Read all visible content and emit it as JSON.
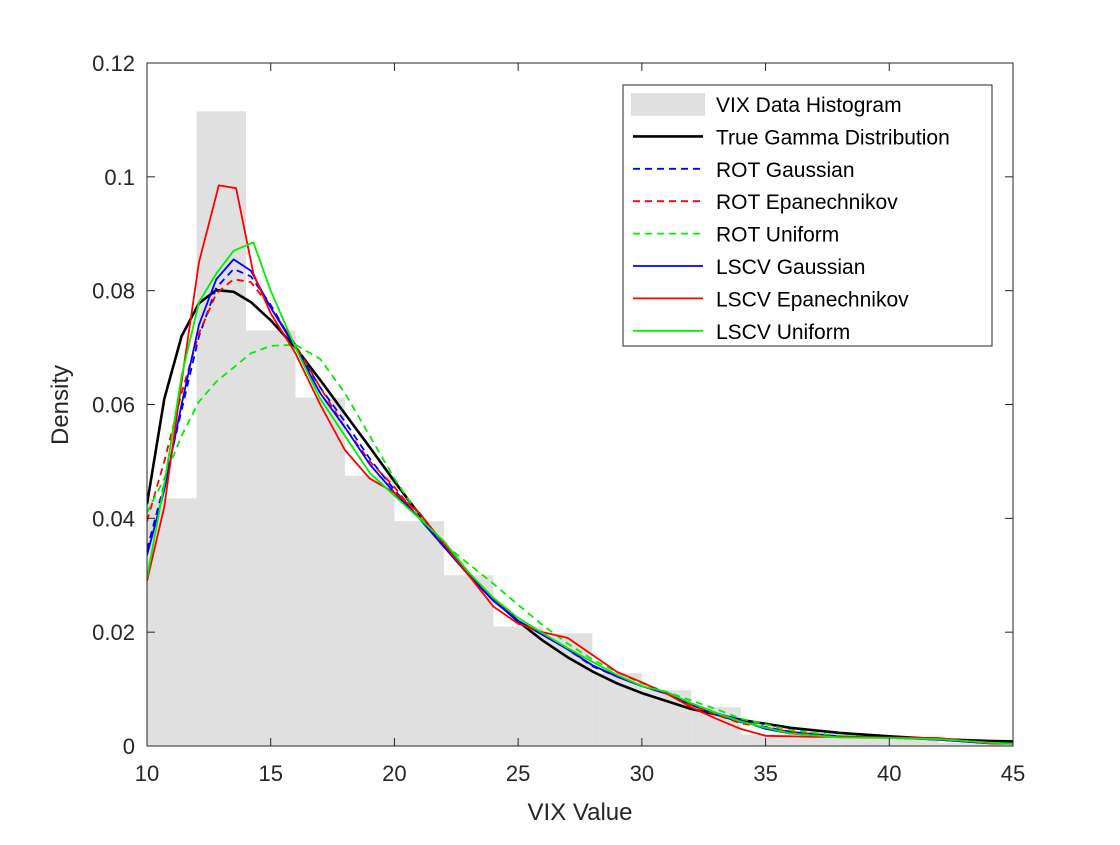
{
  "chart_data": {
    "type": "line",
    "xlabel": "VIX Value",
    "ylabel": "Density",
    "xlim": [
      10,
      45
    ],
    "ylim": [
      0,
      0.12
    ],
    "xticks": [
      10,
      15,
      20,
      25,
      30,
      35,
      40,
      45
    ],
    "xtick_labels": [
      "10",
      "15",
      "20",
      "25",
      "30",
      "35",
      "40",
      "45"
    ],
    "yticks": [
      0,
      0.02,
      0.04,
      0.06,
      0.08,
      0.1,
      0.12
    ],
    "ytick_labels": [
      "0",
      "0.02",
      "0.04",
      "0.06",
      "0.08",
      "0.1",
      "0.12"
    ],
    "grid": false,
    "legend_position": "top-right",
    "histogram": {
      "name": "VIX Data Histogram",
      "color": "#e0e0e0",
      "bins": [
        {
          "x0": 10.0,
          "x1": 12.0,
          "y": 0.0435
        },
        {
          "x0": 12.0,
          "x1": 14.0,
          "y": 0.1115
        },
        {
          "x0": 14.0,
          "x1": 16.0,
          "y": 0.073
        },
        {
          "x0": 16.0,
          "x1": 18.0,
          "y": 0.0612
        },
        {
          "x0": 18.0,
          "x1": 20.0,
          "y": 0.0475
        },
        {
          "x0": 20.0,
          "x1": 22.0,
          "y": 0.0395
        },
        {
          "x0": 22.0,
          "x1": 24.0,
          "y": 0.03
        },
        {
          "x0": 24.0,
          "x1": 26.0,
          "y": 0.021
        },
        {
          "x0": 26.0,
          "x1": 28.0,
          "y": 0.0198
        },
        {
          "x0": 28.0,
          "x1": 30.0,
          "y": 0.0128
        },
        {
          "x0": 30.0,
          "x1": 32.0,
          "y": 0.0098
        },
        {
          "x0": 32.0,
          "x1": 34.0,
          "y": 0.0068
        },
        {
          "x0": 34.0,
          "x1": 36.0,
          "y": 0.002
        },
        {
          "x0": 36.0,
          "x1": 38.0,
          "y": 0.0015
        },
        {
          "x0": 38.0,
          "x1": 40.0,
          "y": 0.0015
        },
        {
          "x0": 40.0,
          "x1": 42.0,
          "y": 0.0012
        },
        {
          "x0": 42.0,
          "x1": 44.0,
          "y": 0.0006
        },
        {
          "x0": 44.0,
          "x1": 45.0,
          "y": 0.0004
        }
      ]
    },
    "series": [
      {
        "name": "True Gamma Distribution",
        "color": "#000000",
        "style": "solid",
        "width": 2.6,
        "x": [
          10,
          10.7,
          11.4,
          12.1,
          12.8,
          13.5,
          14.2,
          15,
          16,
          17,
          18,
          19,
          20,
          21,
          22,
          23,
          24,
          25,
          26,
          27,
          28,
          29,
          30,
          32,
          34,
          36,
          38,
          40,
          42,
          44,
          45
        ],
        "y": [
          0.0425,
          0.061,
          0.072,
          0.0778,
          0.0801,
          0.0798,
          0.078,
          0.0748,
          0.07,
          0.0643,
          0.0584,
          0.0525,
          0.0465,
          0.0407,
          0.0353,
          0.0303,
          0.0258,
          0.0219,
          0.0185,
          0.0156,
          0.0131,
          0.011,
          0.0093,
          0.0065,
          0.0046,
          0.0032,
          0.0023,
          0.0017,
          0.0012,
          0.0009,
          0.0008
        ]
      },
      {
        "name": "ROT Gaussian",
        "color": "#0000ff",
        "style": "dashed",
        "width": 1.8,
        "x": [
          10,
          10.7,
          11.4,
          12.1,
          12.8,
          13.5,
          14.2,
          15,
          16,
          17,
          18,
          19,
          20,
          21,
          22,
          23,
          24,
          25,
          26,
          27,
          28,
          29,
          30,
          31,
          32,
          33,
          34,
          36,
          38,
          40,
          42,
          44,
          45
        ],
        "y": [
          0.0345,
          0.046,
          0.059,
          0.072,
          0.0805,
          0.0838,
          0.0825,
          0.0775,
          0.07,
          0.063,
          0.057,
          0.0505,
          0.045,
          0.04,
          0.0355,
          0.03,
          0.026,
          0.022,
          0.0195,
          0.017,
          0.014,
          0.0122,
          0.0105,
          0.0092,
          0.0072,
          0.0055,
          0.0042,
          0.0025,
          0.0017,
          0.0015,
          0.0011,
          0.0005,
          0.0004
        ]
      },
      {
        "name": "ROT Epanechnikov",
        "color": "#ff0000",
        "style": "dashed",
        "width": 1.8,
        "x": [
          10,
          10.7,
          11.4,
          12.1,
          12.8,
          13.5,
          14.2,
          15,
          16,
          17,
          18,
          19,
          20,
          21,
          22,
          23,
          24,
          25,
          26,
          27,
          28,
          29,
          30,
          31,
          32,
          33,
          34,
          36,
          38,
          40,
          42,
          44,
          45
        ],
        "y": [
          0.0395,
          0.05,
          0.062,
          0.0725,
          0.0795,
          0.082,
          0.0815,
          0.077,
          0.0705,
          0.063,
          0.056,
          0.05,
          0.0455,
          0.04,
          0.035,
          0.03,
          0.0258,
          0.022,
          0.0195,
          0.017,
          0.0142,
          0.0122,
          0.0105,
          0.0092,
          0.0072,
          0.0055,
          0.004,
          0.0025,
          0.0017,
          0.0015,
          0.0011,
          0.0005,
          0.0004
        ]
      },
      {
        "name": "ROT Uniform",
        "color": "#00ee00",
        "style": "dashed",
        "width": 1.8,
        "x": [
          10,
          10.7,
          11.4,
          12.1,
          12.8,
          13.5,
          14.2,
          15,
          16,
          17,
          18,
          19,
          20,
          21,
          22,
          23,
          24,
          25,
          26,
          27,
          28,
          29,
          30,
          31,
          32,
          33,
          34,
          36,
          38,
          40,
          42,
          44,
          45
        ],
        "y": [
          0.041,
          0.047,
          0.0545,
          0.0605,
          0.064,
          0.0665,
          0.069,
          0.0703,
          0.0705,
          0.068,
          0.062,
          0.0545,
          0.047,
          0.0405,
          0.0355,
          0.032,
          0.0285,
          0.0248,
          0.0212,
          0.018,
          0.0152,
          0.013,
          0.011,
          0.0095,
          0.008,
          0.0065,
          0.0048,
          0.0028,
          0.0018,
          0.0014,
          0.0011,
          0.0006,
          0.0004
        ]
      },
      {
        "name": "LSCV Gaussian",
        "color": "#0000ff",
        "style": "solid",
        "width": 1.8,
        "x": [
          10,
          10.7,
          11.4,
          12.1,
          12.8,
          13.5,
          14.2,
          15,
          16,
          17,
          18,
          19,
          20,
          21,
          22,
          23,
          24,
          25,
          26,
          27,
          28,
          29,
          30,
          31,
          32,
          33,
          34,
          35,
          36,
          38,
          40,
          42,
          44,
          45
        ],
        "y": [
          0.0335,
          0.045,
          0.06,
          0.074,
          0.082,
          0.0855,
          0.0835,
          0.077,
          0.07,
          0.062,
          0.056,
          0.0495,
          0.0445,
          0.04,
          0.035,
          0.03,
          0.0255,
          0.022,
          0.0195,
          0.017,
          0.0142,
          0.0122,
          0.0105,
          0.0092,
          0.0075,
          0.0058,
          0.0045,
          0.003,
          0.0022,
          0.0016,
          0.0015,
          0.0011,
          0.0005,
          0.0004
        ]
      },
      {
        "name": "LSCV Epanechnikov",
        "color": "#ff0000",
        "style": "solid",
        "width": 1.8,
        "x": [
          10,
          10.7,
          11.4,
          12.1,
          12.9,
          13.6,
          14.3,
          15,
          16,
          17,
          18,
          19,
          20,
          21,
          22,
          23,
          24,
          25,
          26,
          27,
          28,
          29,
          30,
          31,
          32,
          33,
          34,
          35,
          36,
          37,
          38,
          40,
          42,
          44,
          45
        ],
        "y": [
          0.029,
          0.042,
          0.064,
          0.085,
          0.0985,
          0.098,
          0.083,
          0.076,
          0.069,
          0.06,
          0.052,
          0.047,
          0.0445,
          0.041,
          0.0355,
          0.03,
          0.0245,
          0.0215,
          0.02,
          0.019,
          0.016,
          0.013,
          0.0112,
          0.0092,
          0.0068,
          0.0048,
          0.003,
          0.0018,
          0.0017,
          0.0016,
          0.0016,
          0.0015,
          0.0014,
          0.0005,
          0.0004
        ]
      },
      {
        "name": "LSCV Uniform",
        "color": "#00ee00",
        "style": "solid",
        "width": 1.8,
        "x": [
          10,
          10.7,
          11.4,
          12.1,
          12.8,
          13.5,
          14.3,
          15,
          16,
          17,
          18,
          19,
          20,
          21,
          22,
          23,
          24,
          25,
          26,
          27,
          28,
          29,
          30,
          31,
          32,
          33,
          34,
          35,
          36,
          38,
          40,
          42,
          44,
          45
        ],
        "y": [
          0.0295,
          0.046,
          0.065,
          0.078,
          0.083,
          0.087,
          0.0885,
          0.08,
          0.07,
          0.061,
          0.0545,
          0.048,
          0.044,
          0.04,
          0.036,
          0.0305,
          0.026,
          0.0225,
          0.0198,
          0.0172,
          0.0148,
          0.0125,
          0.0105,
          0.0095,
          0.0075,
          0.0058,
          0.0043,
          0.0032,
          0.0022,
          0.0015,
          0.0014,
          0.0012,
          0.0006,
          0.0004
        ]
      }
    ]
  }
}
